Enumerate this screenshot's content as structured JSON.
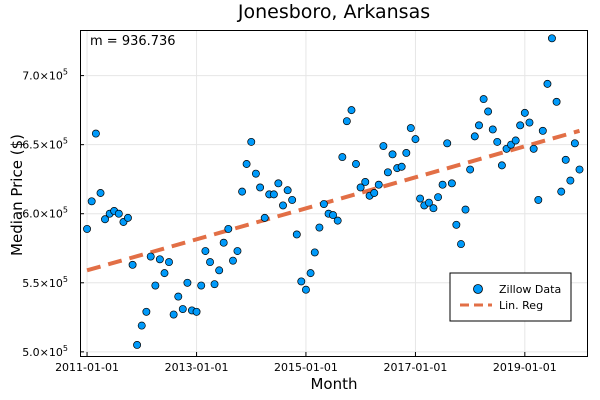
{
  "chart_data": {
    "type": "scatter",
    "title": "Jonesboro, Arkansas",
    "xlabel": "Month",
    "ylabel": "Median Price ($)",
    "x_ticks": [
      "2011-01-01",
      "2013-01-01",
      "2015-01-01",
      "2017-01-01",
      "2019-01-01"
    ],
    "y_ticks": [
      {
        "value": 500000,
        "mantissa": "5.0×10",
        "exp": "5"
      },
      {
        "value": 550000,
        "mantissa": "5.5×10",
        "exp": "5"
      },
      {
        "value": 600000,
        "mantissa": "6.0×10",
        "exp": "5"
      },
      {
        "value": 650000,
        "mantissa": "6.5×10",
        "exp": "5"
      },
      {
        "value": 700000,
        "mantissa": "7.0×10",
        "exp": "5"
      }
    ],
    "xlim": [
      "2010-11-15",
      "2020-02-20"
    ],
    "ylim": [
      497000,
      733000
    ],
    "grid": true,
    "annotation": "m = 936.736",
    "legend": {
      "position": "bottom-right",
      "entries": [
        {
          "label": "Zillow Data",
          "kind": "marker"
        },
        {
          "label": "Lin. Reg",
          "kind": "dashed-line"
        }
      ]
    },
    "colors": {
      "scatter": "#009AFA",
      "regression": "#E26F46"
    },
    "series": [
      {
        "name": "Zillow Data",
        "points": [
          [
            "2011-01-01",
            589000
          ],
          [
            "2011-02-01",
            609000
          ],
          [
            "2011-03-01",
            658000
          ],
          [
            "2011-04-01",
            615000
          ],
          [
            "2011-05-01",
            596000
          ],
          [
            "2011-06-01",
            600000
          ],
          [
            "2011-07-01",
            602000
          ],
          [
            "2011-08-01",
            600000
          ],
          [
            "2011-09-01",
            594000
          ],
          [
            "2011-10-01",
            597000
          ],
          [
            "2011-11-01",
            563000
          ],
          [
            "2011-12-01",
            505000
          ],
          [
            "2012-01-01",
            519000
          ],
          [
            "2012-02-01",
            529000
          ],
          [
            "2012-03-01",
            569000
          ],
          [
            "2012-04-01",
            548000
          ],
          [
            "2012-05-01",
            567000
          ],
          [
            "2012-06-01",
            557000
          ],
          [
            "2012-07-01",
            565000
          ],
          [
            "2012-08-01",
            527000
          ],
          [
            "2012-09-01",
            540000
          ],
          [
            "2012-10-01",
            531000
          ],
          [
            "2012-11-01",
            550000
          ],
          [
            "2012-12-01",
            530000
          ],
          [
            "2013-01-01",
            529000
          ],
          [
            "2013-02-01",
            548000
          ],
          [
            "2013-03-01",
            573000
          ],
          [
            "2013-04-01",
            565000
          ],
          [
            "2013-05-01",
            549000
          ],
          [
            "2013-06-01",
            559000
          ],
          [
            "2013-07-01",
            579000
          ],
          [
            "2013-08-01",
            589000
          ],
          [
            "2013-09-01",
            566000
          ],
          [
            "2013-10-01",
            573000
          ],
          [
            "2013-11-01",
            616000
          ],
          [
            "2013-12-01",
            636000
          ],
          [
            "2014-01-01",
            652000
          ],
          [
            "2014-02-01",
            629000
          ],
          [
            "2014-03-01",
            619000
          ],
          [
            "2014-04-01",
            597000
          ],
          [
            "2014-05-01",
            614000
          ],
          [
            "2014-06-01",
            614000
          ],
          [
            "2014-07-01",
            622000
          ],
          [
            "2014-08-01",
            606000
          ],
          [
            "2014-09-01",
            617000
          ],
          [
            "2014-10-01",
            610000
          ],
          [
            "2014-11-01",
            585000
          ],
          [
            "2014-12-01",
            551000
          ],
          [
            "2015-01-01",
            545000
          ],
          [
            "2015-02-01",
            557000
          ],
          [
            "2015-03-01",
            572000
          ],
          [
            "2015-04-01",
            590000
          ],
          [
            "2015-05-01",
            607000
          ],
          [
            "2015-06-01",
            600000
          ],
          [
            "2015-07-01",
            599000
          ],
          [
            "2015-08-01",
            595000
          ],
          [
            "2015-09-01",
            641000
          ],
          [
            "2015-10-01",
            667000
          ],
          [
            "2015-11-01",
            675000
          ],
          [
            "2015-12-01",
            636000
          ],
          [
            "2016-01-01",
            619000
          ],
          [
            "2016-02-01",
            623000
          ],
          [
            "2016-03-01",
            613000
          ],
          [
            "2016-04-01",
            615000
          ],
          [
            "2016-05-01",
            621000
          ],
          [
            "2016-06-01",
            649000
          ],
          [
            "2016-07-01",
            630000
          ],
          [
            "2016-08-01",
            643000
          ],
          [
            "2016-09-01",
            633000
          ],
          [
            "2016-10-01",
            634000
          ],
          [
            "2016-11-01",
            644000
          ],
          [
            "2016-12-01",
            662000
          ],
          [
            "2017-01-01",
            654000
          ],
          [
            "2017-02-01",
            611000
          ],
          [
            "2017-03-01",
            606000
          ],
          [
            "2017-04-01",
            608000
          ],
          [
            "2017-05-01",
            604000
          ],
          [
            "2017-06-01",
            612000
          ],
          [
            "2017-07-01",
            621000
          ],
          [
            "2017-08-01",
            651000
          ],
          [
            "2017-09-01",
            622000
          ],
          [
            "2017-10-01",
            592000
          ],
          [
            "2017-11-01",
            578000
          ],
          [
            "2017-12-01",
            603000
          ],
          [
            "2018-01-01",
            632000
          ],
          [
            "2018-02-01",
            656000
          ],
          [
            "2018-03-01",
            664000
          ],
          [
            "2018-04-01",
            683000
          ],
          [
            "2018-05-01",
            674000
          ],
          [
            "2018-06-01",
            661000
          ],
          [
            "2018-07-01",
            652000
          ],
          [
            "2018-08-01",
            635000
          ],
          [
            "2018-09-01",
            647000
          ],
          [
            "2018-10-01",
            650000
          ],
          [
            "2018-11-01",
            653000
          ],
          [
            "2018-12-01",
            664000
          ],
          [
            "2019-01-01",
            673000
          ],
          [
            "2019-02-01",
            666000
          ],
          [
            "2019-03-01",
            647000
          ],
          [
            "2019-04-01",
            610000
          ],
          [
            "2019-05-01",
            660000
          ],
          [
            "2019-06-01",
            694000
          ],
          [
            "2019-07-01",
            727000
          ],
          [
            "2019-08-01",
            681000
          ],
          [
            "2019-09-01",
            616000
          ],
          [
            "2019-10-01",
            639000
          ],
          [
            "2019-11-01",
            624000
          ],
          [
            "2019-12-01",
            651000
          ],
          [
            "2020-01-01",
            632000
          ]
        ]
      },
      {
        "name": "Lin. Reg",
        "type": "line",
        "points": [
          [
            "2011-01-01",
            559000
          ],
          [
            "2020-01-01",
            660000
          ]
        ]
      }
    ]
  }
}
